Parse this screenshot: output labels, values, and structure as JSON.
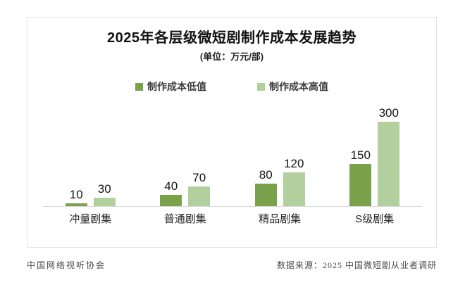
{
  "header": {
    "title": "2025年各层级微短剧制作成本发展趋势",
    "subtitle": "(单位：万元/部)"
  },
  "legend": {
    "items": [
      {
        "label": "制作成本低值",
        "color": "#7aa24a"
      },
      {
        "label": "制作成本高值",
        "color": "#b2d09e"
      }
    ]
  },
  "colors": {
    "bar_low": "#7aa24a",
    "bar_high": "#b2d09e",
    "axis_line": "#d9d9d9",
    "frame_border": "#e2e2e2"
  },
  "footer": {
    "left": "中国网络视听协会",
    "right": "数据来源：2025 中国微短剧从业者调研"
  },
  "chart_data": {
    "type": "bar",
    "title": "2025年各层级微短剧制作成本发展趋势",
    "subtitle_unit": "万元/部",
    "categories": [
      "冲量剧集",
      "普通剧集",
      "精品剧集",
      "S级剧集"
    ],
    "series": [
      {
        "name": "制作成本低值",
        "values": [
          10,
          40,
          80,
          150
        ]
      },
      {
        "name": "制作成本高值",
        "values": [
          30,
          70,
          120,
          300
        ]
      }
    ],
    "ylim": [
      0,
      300
    ],
    "grid": false,
    "legend_position": "top-center",
    "value_labels": true
  }
}
